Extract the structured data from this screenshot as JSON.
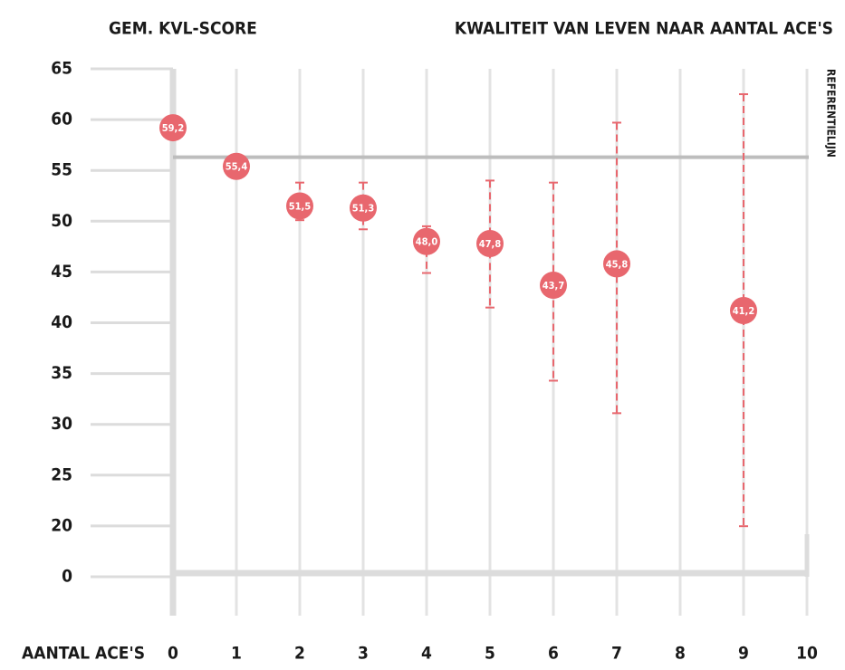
{
  "chart_data": {
    "type": "errorbar",
    "title": "KWALITEIT VAN LEVEN NAAR AANTAL ACE'S",
    "ylabel": "GEM. KVL-SCORE",
    "xlabel": "AANTAL ACE'S",
    "categories": [
      "0",
      "1",
      "2",
      "3",
      "4",
      "5",
      "6",
      "7",
      "8",
      "9",
      "10"
    ],
    "values": [
      59.2,
      55.4,
      51.5,
      51.3,
      48.0,
      47.8,
      43.7,
      45.8,
      null,
      41.2,
      null
    ],
    "value_labels": [
      "59,2",
      "55,4",
      "51,5",
      "51,3",
      "48,0",
      "47,8",
      "43,7",
      "45,8",
      null,
      "41,2",
      null
    ],
    "low": [
      null,
      54.5,
      50.1,
      49.2,
      44.9,
      41.5,
      34.3,
      31.1,
      null,
      19.9,
      null
    ],
    "high": [
      null,
      56.3,
      53.8,
      53.8,
      49.5,
      54.0,
      53.8,
      59.7,
      null,
      62.5,
      null
    ],
    "color": "#e8676e",
    "ylim": [
      0,
      65
    ],
    "yticks": [
      65,
      60,
      55,
      50,
      45,
      40,
      35,
      30,
      25,
      20,
      0
    ],
    "axis_break": true,
    "reference": {
      "label": "REFERENTIELIJN",
      "value": 56.3
    },
    "grid": true
  }
}
